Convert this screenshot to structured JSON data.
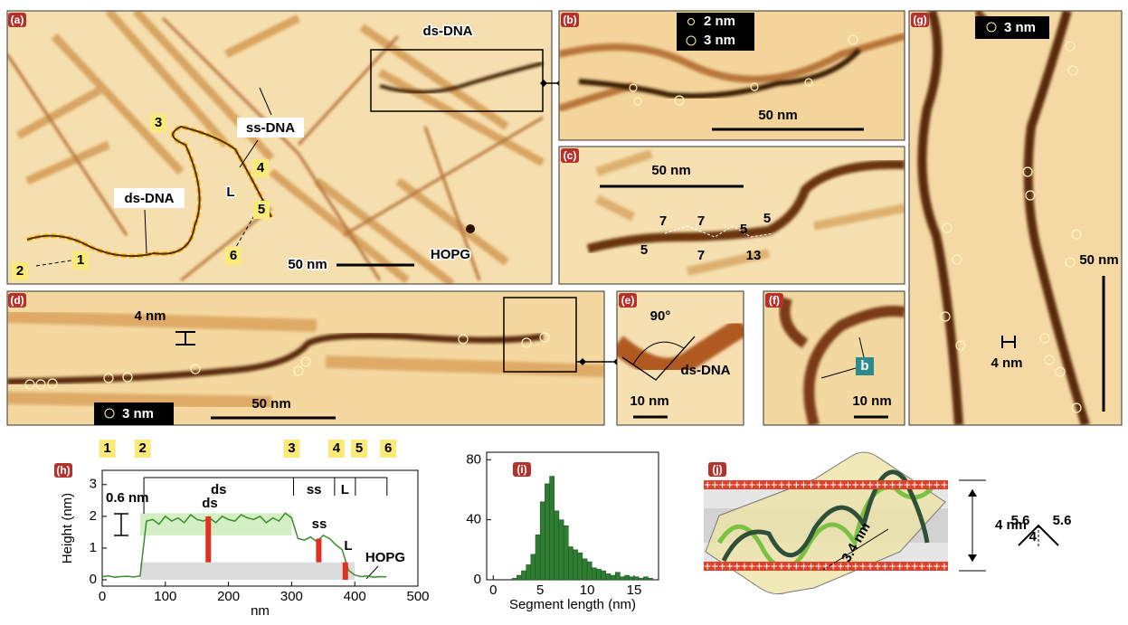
{
  "panels": {
    "a": {
      "label": "(a)",
      "ds_top": "ds-DNA",
      "ss": "ss-DNA",
      "ds_left": "ds-DNA",
      "hopg": "HOPG",
      "scale": "50 nm",
      "L": "L",
      "points": [
        "1",
        "2",
        "3",
        "4",
        "5",
        "6"
      ]
    },
    "b": {
      "label": "(b)",
      "legend": [
        "2 nm",
        "3 nm"
      ],
      "scale": "50 nm"
    },
    "c": {
      "label": "(c)",
      "scale": "50 nm",
      "segments": [
        "7",
        "7",
        "5",
        "5",
        "5",
        "7",
        "13"
      ]
    },
    "d": {
      "label": "(d)",
      "height": "4 nm",
      "scale": "50 nm",
      "legend": "3 nm"
    },
    "e": {
      "label": "(e)",
      "angle": "90°",
      "ds": "ds-DNA",
      "scale": "10 nm"
    },
    "f": {
      "label": "(f)",
      "b": "b",
      "scale": "10 nm"
    },
    "g": {
      "label": "(g)",
      "legend": "3 nm",
      "scale": "50 nm",
      "width": "4 nm"
    },
    "j": {
      "label": "(j)",
      "pitch": "3.4 nm",
      "width": "4 nm",
      "angle_sides": [
        "5.6",
        "5.6"
      ],
      "angle_height": "4",
      "charges": "+++++++++++++++++++++++++++++++++++++++++++++"
    }
  },
  "chart_data": [
    {
      "type": "line",
      "label": "(h)",
      "xlabel": "nm",
      "ylabel": "Height (nm)",
      "xlim": [
        0,
        500
      ],
      "ylim": [
        -0.2,
        3.45
      ],
      "xticks": [
        0,
        100,
        200,
        300,
        400,
        500
      ],
      "yticks": [
        0,
        1,
        2,
        3
      ],
      "x": [
        0,
        10,
        20,
        30,
        40,
        50,
        60,
        70,
        80,
        90,
        100,
        110,
        120,
        130,
        140,
        150,
        160,
        170,
        180,
        190,
        200,
        210,
        220,
        230,
        240,
        250,
        260,
        270,
        280,
        290,
        300,
        310,
        320,
        330,
        340,
        350,
        360,
        370,
        380,
        390,
        400,
        410,
        420,
        430,
        440,
        450
      ],
      "series": [
        {
          "color": "#3a8c2f",
          "values": [
            0.1,
            0.12,
            0.08,
            0.1,
            0.11,
            0.09,
            0.12,
            1.85,
            1.9,
            1.75,
            2.0,
            1.85,
            1.95,
            1.8,
            2.05,
            1.9,
            1.85,
            1.95,
            1.8,
            2.0,
            1.9,
            1.85,
            2.05,
            1.95,
            1.9,
            2.0,
            1.8,
            1.95,
            1.85,
            2.1,
            1.95,
            1.3,
            1.25,
            1.35,
            1.2,
            1.4,
            1.3,
            1.1,
            0.95,
            0.3,
            0.15,
            0.1,
            0.12,
            0.08,
            0.1,
            0.09
          ]
        }
      ],
      "points": [
        {
          "label": "1",
          "x": 8
        },
        {
          "label": "2",
          "x": 64
        },
        {
          "label": "3",
          "x": 300
        },
        {
          "label": "4",
          "x": 371
        },
        {
          "label": "5",
          "x": 407
        },
        {
          "label": "6",
          "x": 453
        }
      ],
      "boundaries": [
        66,
        303,
        368,
        401,
        451
      ],
      "segment_labels": [
        "ds",
        "ss",
        "L"
      ],
      "annotations": [
        "0.6 nm",
        "ds",
        "ss",
        "L",
        "HOPG"
      ],
      "bars": [
        {
          "x": 168,
          "from": 0.55,
          "to": 2.0
        },
        {
          "x": 343,
          "from": 0.55,
          "to": 1.3
        },
        {
          "x": 385,
          "from": 0,
          "to": 0.55
        }
      ],
      "bands": [
        {
          "from_x": 60,
          "to_x": 300,
          "from_y": 1.4,
          "to_y": 2.1,
          "color": "#d5efc4"
        },
        {
          "from_x": 60,
          "to_x": 400,
          "from_y": 0,
          "to_y": 0.55,
          "color": "#dcdcdc"
        }
      ]
    },
    {
      "type": "histogram",
      "label": "(i)",
      "xlabel": "Segment length (nm)",
      "xlim": [
        -0.7,
        17.6
      ],
      "ylim": [
        0,
        85
      ],
      "xticks": [
        0,
        5,
        10,
        15
      ],
      "yticks": [
        0,
        40,
        80
      ],
      "color": "#2f7d32",
      "bins": [
        2,
        2.5,
        3,
        3.5,
        4,
        4.5,
        5,
        5.5,
        6,
        6.5,
        7,
        7.5,
        8,
        8.5,
        9,
        9.5,
        10,
        10.5,
        11,
        11.5,
        12,
        12.5,
        13,
        13.5,
        14,
        14.5,
        15,
        15.5,
        16,
        16.5,
        17
      ],
      "values": [
        1,
        3,
        6,
        10,
        17,
        30,
        52,
        64,
        69,
        46,
        40,
        36,
        22,
        20,
        18,
        14,
        12,
        8,
        7,
        6,
        4,
        3,
        5,
        2,
        3,
        2,
        2,
        1,
        2,
        1
      ]
    }
  ]
}
